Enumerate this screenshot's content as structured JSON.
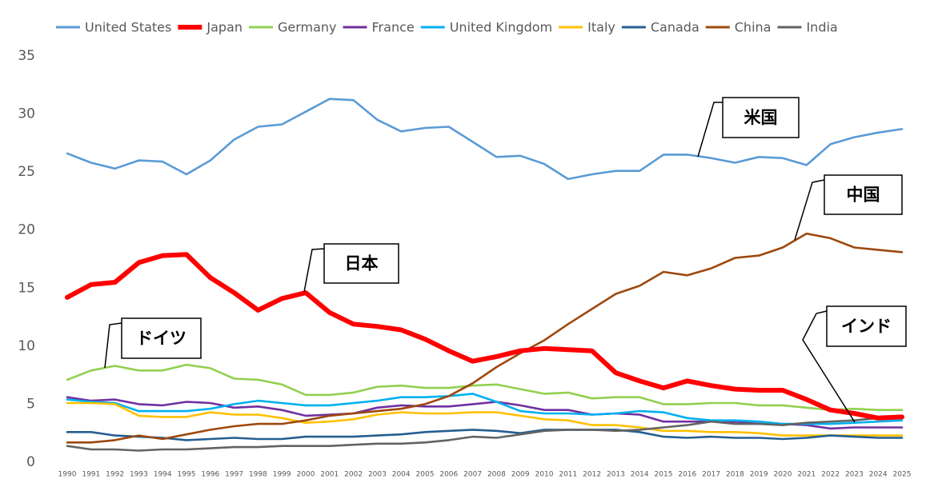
{
  "chart_data": {
    "type": "line",
    "categories": [
      "1990",
      "1991",
      "1992",
      "1993",
      "1994",
      "1995",
      "1996",
      "1997",
      "1998",
      "1999",
      "2000",
      "2001",
      "2002",
      "2003",
      "2004",
      "2005",
      "2006",
      "2007",
      "2008",
      "2009",
      "2010",
      "2011",
      "2012",
      "2013",
      "2014",
      "2015",
      "2016",
      "2017",
      "2018",
      "2019",
      "2020",
      "2021",
      "2022",
      "2023",
      "2024",
      "2025"
    ],
    "series": [
      {
        "name": "United States",
        "color": "#5b9bd5",
        "values": [
          26.6,
          25.8,
          25.3,
          26.0,
          25.9,
          24.8,
          26.0,
          27.8,
          28.9,
          29.1,
          30.2,
          31.3,
          31.2,
          29.5,
          28.5,
          28.8,
          28.9,
          27.6,
          26.3,
          26.4,
          25.7,
          24.4,
          24.8,
          25.1,
          25.1,
          26.5,
          26.5,
          26.2,
          25.8,
          26.3,
          26.2,
          25.6,
          27.4,
          28.0,
          28.4,
          28.7
        ]
      },
      {
        "name": "Japan",
        "color": "#ff0000",
        "values": [
          14.2,
          15.3,
          15.5,
          17.2,
          17.8,
          17.9,
          15.9,
          14.6,
          13.1,
          14.1,
          14.6,
          12.9,
          11.9,
          11.7,
          11.4,
          10.6,
          9.6,
          8.7,
          9.1,
          9.6,
          9.8,
          9.7,
          9.6,
          7.7,
          7.0,
          6.4,
          7.0,
          6.6,
          6.3,
          6.2,
          6.2,
          5.4,
          4.5,
          4.2,
          3.8,
          3.9
        ]
      },
      {
        "name": "Germany",
        "color": "#92d050",
        "values": [
          7.1,
          7.9,
          8.3,
          7.9,
          7.9,
          8.4,
          8.1,
          7.2,
          7.1,
          6.7,
          5.8,
          5.8,
          6.0,
          6.5,
          6.6,
          6.4,
          6.4,
          6.6,
          6.7,
          6.3,
          5.9,
          6.0,
          5.5,
          5.6,
          5.6,
          5.0,
          5.0,
          5.1,
          5.1,
          4.9,
          4.9,
          4.7,
          4.5,
          4.6,
          4.5,
          4.5
        ]
      },
      {
        "name": "France",
        "color": "#7030a0",
        "values": [
          5.6,
          5.3,
          5.4,
          5.0,
          4.9,
          5.2,
          5.1,
          4.7,
          4.8,
          4.5,
          4.0,
          4.1,
          4.2,
          4.7,
          4.9,
          4.8,
          4.8,
          5.0,
          5.2,
          4.9,
          4.5,
          4.5,
          4.1,
          4.2,
          4.1,
          3.5,
          3.5,
          3.5,
          3.5,
          3.3,
          3.3,
          3.2,
          2.9,
          3.0,
          3.0,
          3.0
        ]
      },
      {
        "name": "United Kingdom",
        "color": "#00b0f0",
        "values": [
          5.4,
          5.2,
          5.1,
          4.4,
          4.4,
          4.4,
          4.6,
          5.0,
          5.3,
          5.1,
          4.9,
          4.9,
          5.1,
          5.3,
          5.6,
          5.6,
          5.7,
          5.9,
          5.2,
          4.4,
          4.2,
          4.2,
          4.1,
          4.2,
          4.4,
          4.3,
          3.8,
          3.6,
          3.6,
          3.5,
          3.3,
          3.3,
          3.3,
          3.4,
          3.5,
          3.6
        ]
      },
      {
        "name": "Italy",
        "color": "#ffc000",
        "values": [
          5.1,
          5.1,
          5.0,
          4.0,
          3.9,
          3.9,
          4.3,
          4.1,
          4.1,
          3.8,
          3.4,
          3.5,
          3.7,
          4.1,
          4.3,
          4.2,
          4.2,
          4.3,
          4.3,
          4.0,
          3.7,
          3.6,
          3.2,
          3.2,
          3.0,
          2.7,
          2.7,
          2.6,
          2.6,
          2.5,
          2.3,
          2.3,
          2.3,
          2.3,
          2.3,
          2.3
        ]
      },
      {
        "name": "Canada",
        "color": "#255e91",
        "values": [
          2.6,
          2.6,
          2.3,
          2.2,
          2.1,
          1.9,
          2.0,
          2.1,
          2.0,
          2.0,
          2.2,
          2.2,
          2.2,
          2.3,
          2.4,
          2.6,
          2.7,
          2.8,
          2.7,
          2.5,
          2.8,
          2.8,
          2.8,
          2.8,
          2.6,
          2.2,
          2.1,
          2.2,
          2.1,
          2.1,
          2.0,
          2.1,
          2.3,
          2.2,
          2.1,
          2.1
        ]
      },
      {
        "name": "China",
        "color": "#9e480e",
        "values": [
          1.7,
          1.7,
          1.9,
          2.3,
          2.0,
          2.4,
          2.8,
          3.1,
          3.3,
          3.3,
          3.6,
          4.0,
          4.2,
          4.4,
          4.6,
          5.0,
          5.7,
          6.8,
          8.2,
          9.4,
          10.5,
          11.9,
          13.2,
          14.5,
          15.2,
          16.4,
          16.1,
          16.7,
          17.6,
          17.8,
          18.5,
          19.7,
          19.3,
          18.5,
          18.3,
          18.1
        ]
      },
      {
        "name": "India",
        "color": "#636363",
        "values": [
          1.4,
          1.1,
          1.1,
          1.0,
          1.1,
          1.1,
          1.2,
          1.3,
          1.3,
          1.4,
          1.4,
          1.4,
          1.5,
          1.6,
          1.6,
          1.7,
          1.9,
          2.2,
          2.1,
          2.4,
          2.7,
          2.8,
          2.8,
          2.7,
          2.8,
          3.0,
          3.2,
          3.5,
          3.3,
          3.3,
          3.2,
          3.4,
          3.5,
          3.6,
          3.8,
          4.0
        ]
      }
    ],
    "ylim": [
      0,
      35
    ],
    "yticks": [
      0,
      5,
      10,
      15,
      20,
      25,
      30,
      35
    ],
    "grid": false,
    "legend": "top",
    "annotations": [
      "米国",
      "中国",
      "日本",
      "ドイツ",
      "インド"
    ]
  }
}
